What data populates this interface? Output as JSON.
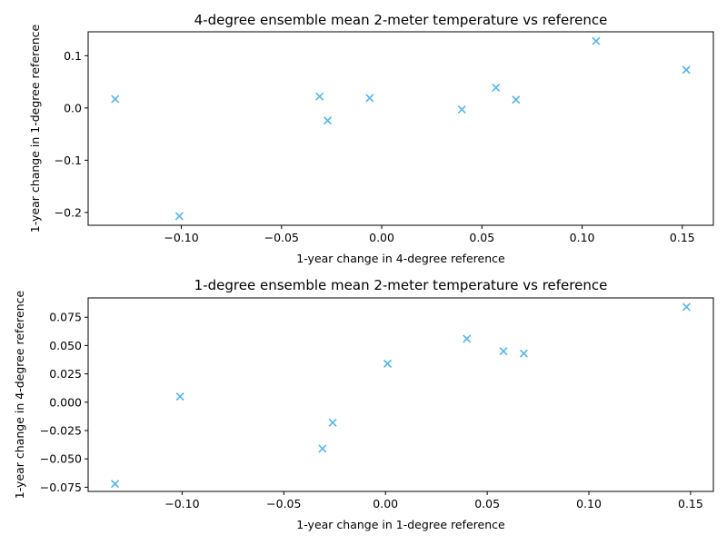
{
  "chart_data": [
    {
      "type": "scatter",
      "title": "4-degree ensemble mean 2-meter temperature vs reference",
      "xlabel": "1-year change in 4-degree reference",
      "ylabel": "1-year change in 1-degree reference",
      "xlim": [
        -0.1465,
        0.1655
      ],
      "ylim": [
        -0.2245,
        0.1458
      ],
      "xticks": [
        -0.1,
        -0.05,
        0.0,
        0.05,
        0.1,
        0.15
      ],
      "xtick_labels": [
        "−0.10",
        "−0.05",
        "0.00",
        "0.05",
        "0.10",
        "0.15"
      ],
      "yticks": [
        -0.2,
        -0.1,
        0.0,
        0.1
      ],
      "ytick_labels": [
        "−0.2",
        "−0.1",
        "0.0",
        "0.1"
      ],
      "marker": "x",
      "color": "#56b4e9",
      "grid": false,
      "points": [
        {
          "x": -0.133,
          "y": 0.017
        },
        {
          "x": -0.101,
          "y": -0.207
        },
        {
          "x": -0.031,
          "y": 0.022
        },
        {
          "x": -0.027,
          "y": -0.024
        },
        {
          "x": -0.006,
          "y": 0.019
        },
        {
          "x": 0.04,
          "y": -0.003
        },
        {
          "x": 0.057,
          "y": 0.039
        },
        {
          "x": 0.067,
          "y": 0.016
        },
        {
          "x": 0.107,
          "y": 0.128
        },
        {
          "x": 0.152,
          "y": 0.073
        }
      ]
    },
    {
      "type": "scatter",
      "title": "1-degree ensemble mean 2-meter temperature vs reference",
      "xlabel": "1-year change in 1-degree reference",
      "ylabel": "1-year change in 4-degree reference",
      "xlim": [
        -0.1462,
        0.1612
      ],
      "ylim": [
        -0.0787,
        0.092
      ],
      "xticks": [
        -0.1,
        -0.05,
        0.0,
        0.05,
        0.1,
        0.15
      ],
      "xtick_labels": [
        "−0.10",
        "−0.05",
        "0.00",
        "0.05",
        "0.10",
        "0.15"
      ],
      "yticks": [
        -0.075,
        -0.05,
        -0.025,
        0.0,
        0.025,
        0.05,
        0.075
      ],
      "ytick_labels": [
        "−0.075",
        "−0.050",
        "−0.025",
        "0.000",
        "0.025",
        "0.050",
        "0.075"
      ],
      "marker": "x",
      "color": "#56b4e9",
      "grid": false,
      "points": [
        {
          "x": -0.133,
          "y": -0.072
        },
        {
          "x": -0.101,
          "y": 0.005
        },
        {
          "x": -0.031,
          "y": -0.041
        },
        {
          "x": -0.026,
          "y": -0.018
        },
        {
          "x": 0.001,
          "y": 0.034
        },
        {
          "x": 0.04,
          "y": 0.056
        },
        {
          "x": 0.058,
          "y": 0.045
        },
        {
          "x": 0.068,
          "y": 0.043
        },
        {
          "x": 0.148,
          "y": 0.084
        }
      ]
    }
  ]
}
